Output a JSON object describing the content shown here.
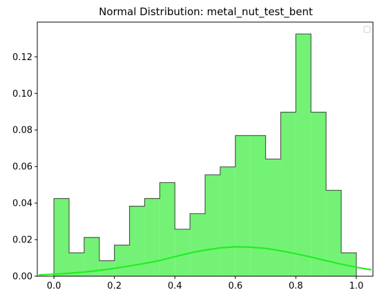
{
  "chart_data": {
    "type": "bar",
    "subtype": "histogram-step-with-density-curve",
    "title": "Normal Distribution: metal_nut_test_bent",
    "xlabel": "",
    "ylabel": "",
    "xlim": [
      -0.055,
      1.055
    ],
    "ylim": [
      0,
      0.139
    ],
    "x_ticks": [
      "0.0",
      "0.2",
      "0.4",
      "0.6",
      "0.8",
      "1.0"
    ],
    "y_ticks": [
      "0.00",
      "0.02",
      "0.04",
      "0.06",
      "0.08",
      "0.10",
      "0.12"
    ],
    "grid": false,
    "legend": {
      "placement": "top-right",
      "entries": []
    },
    "bin_edges": [
      0.0,
      0.05,
      0.1,
      0.15,
      0.2,
      0.25,
      0.3,
      0.35,
      0.4,
      0.45,
      0.5,
      0.55,
      0.6,
      0.65,
      0.7,
      0.75,
      0.8,
      0.85,
      0.9,
      0.95,
      1.0
    ],
    "series": [
      {
        "kind": "histogram",
        "values": [
          0.0425,
          0.0128,
          0.0212,
          0.0085,
          0.017,
          0.0383,
          0.0425,
          0.0512,
          0.0257,
          0.0342,
          0.0555,
          0.0598,
          0.0769,
          0.0769,
          0.0641,
          0.0897,
          0.1325,
          0.0897,
          0.047,
          0.0128
        ],
        "fill_color": "#74f276",
        "edge_color": "#4a5a4a"
      },
      {
        "kind": "normal-curve",
        "x": [
          -0.05,
          0.0,
          0.05,
          0.1,
          0.15,
          0.2,
          0.25,
          0.3,
          0.35,
          0.4,
          0.45,
          0.5,
          0.55,
          0.6,
          0.65,
          0.7,
          0.75,
          0.8,
          0.85,
          0.9,
          0.95,
          1.0,
          1.05
        ],
        "values": [
          0.0007,
          0.0011,
          0.0016,
          0.0023,
          0.0032,
          0.0043,
          0.0056,
          0.007,
          0.0086,
          0.0107,
          0.0127,
          0.0143,
          0.0155,
          0.0161,
          0.0159,
          0.0152,
          0.0139,
          0.0123,
          0.0105,
          0.0085,
          0.0066,
          0.0049,
          0.0035
        ],
        "color": "#22ee22"
      }
    ]
  }
}
